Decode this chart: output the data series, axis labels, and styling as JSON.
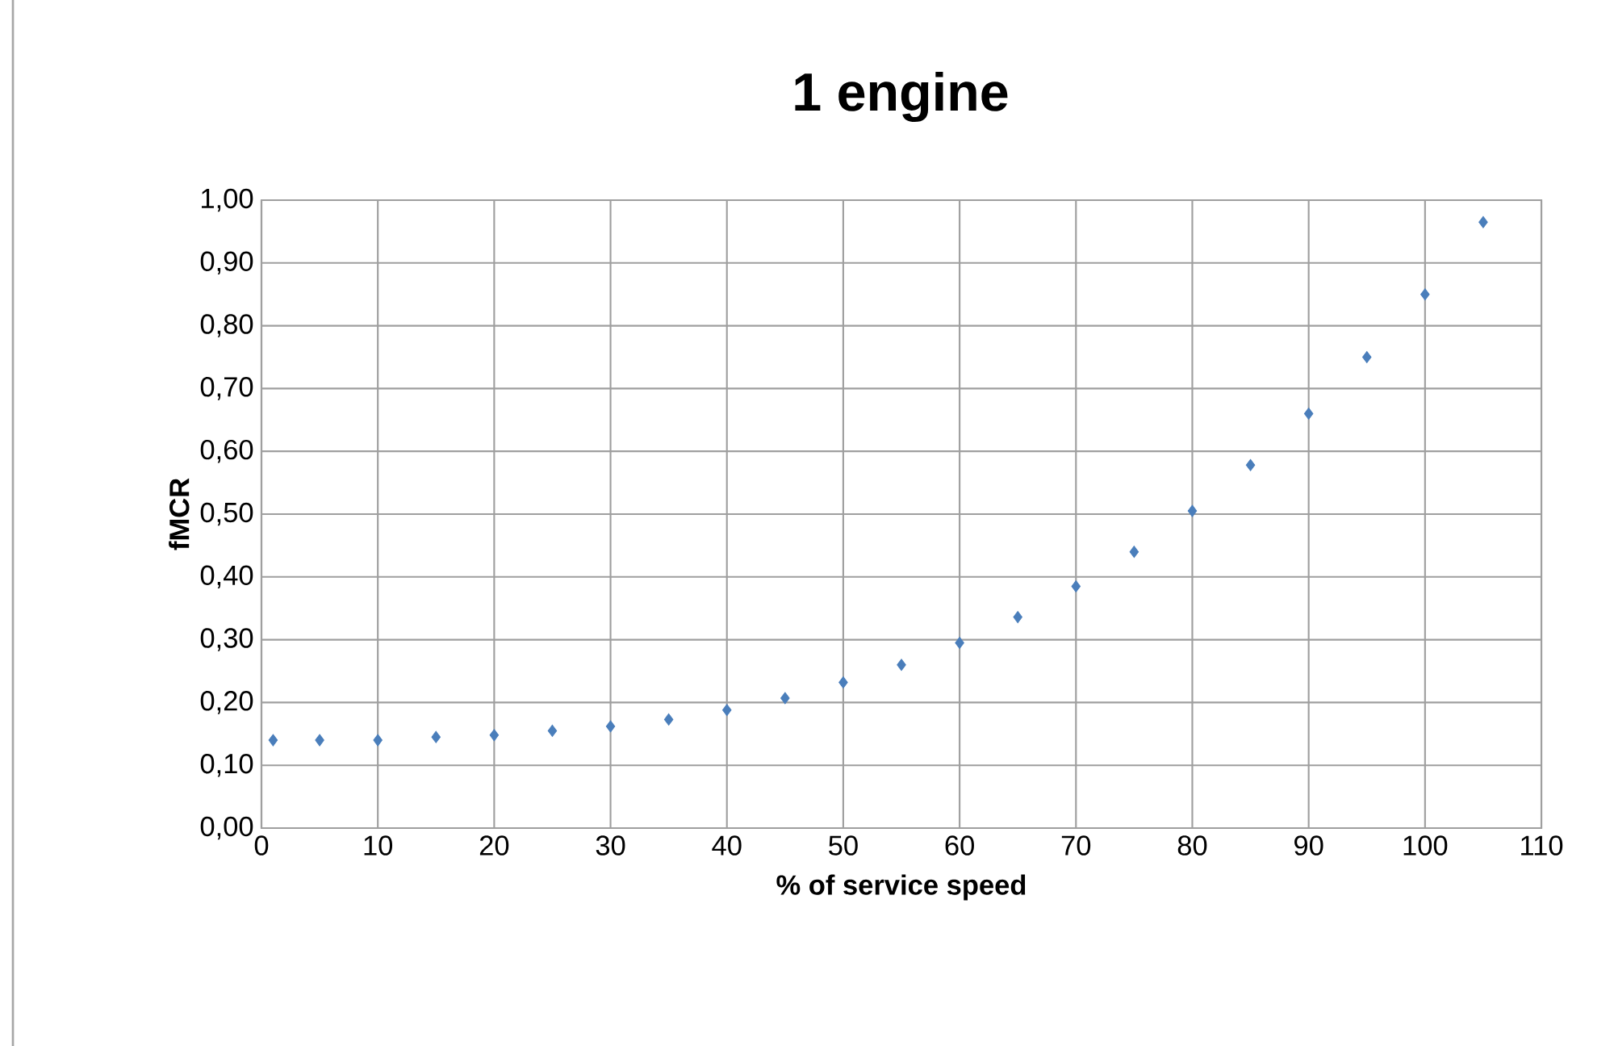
{
  "chart_data": {
    "type": "scatter",
    "title": "1 engine",
    "xlabel": "% of service speed",
    "ylabel": "fMCR",
    "x": [
      1,
      5,
      10,
      15,
      20,
      25,
      30,
      35,
      40,
      45,
      50,
      55,
      60,
      65,
      70,
      75,
      80,
      85,
      90,
      95,
      100,
      105
    ],
    "values": [
      0.14,
      0.14,
      0.14,
      0.145,
      0.148,
      0.155,
      0.162,
      0.173,
      0.188,
      0.207,
      0.232,
      0.26,
      0.295,
      0.336,
      0.385,
      0.44,
      0.505,
      0.578,
      0.66,
      0.75,
      0.85,
      0.965
    ],
    "color": "#4a7ebb",
    "marker": "diamond",
    "grid": true,
    "xlim": [
      0,
      110
    ],
    "ylim": [
      0,
      1
    ],
    "xticks": [
      0,
      10,
      20,
      30,
      40,
      50,
      60,
      70,
      80,
      90,
      100,
      110
    ],
    "yticks": [
      {
        "value": 0,
        "label": "0,00"
      },
      {
        "value": 0.1,
        "label": "0,10"
      },
      {
        "value": 0.2,
        "label": "0,20"
      },
      {
        "value": 0.3,
        "label": "0,30"
      },
      {
        "value": 0.4,
        "label": "0,40"
      },
      {
        "value": 0.5,
        "label": "0,50"
      },
      {
        "value": 0.6,
        "label": "0,60"
      },
      {
        "value": 0.7,
        "label": "0,70"
      },
      {
        "value": 0.8,
        "label": "0,80"
      },
      {
        "value": 0.9,
        "label": "0,90"
      },
      {
        "value": 1,
        "label": "1,00"
      }
    ]
  }
}
